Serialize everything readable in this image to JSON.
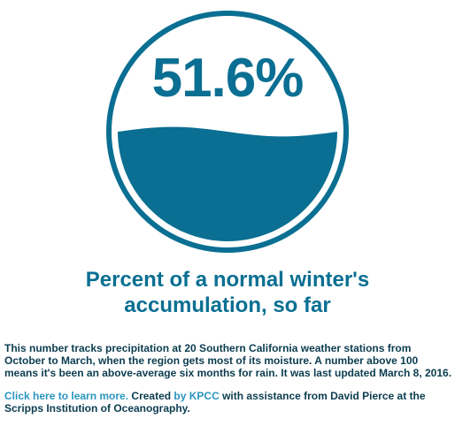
{
  "gauge": {
    "value_text": "51.6%",
    "fill_fraction": 0.516,
    "color": "#0a6f92"
  },
  "headline": {
    "line1": "Percent of a normal winter's",
    "line2": "accumulation, so far"
  },
  "description": "This number tracks precipitation at 20 Southern California weather stations from October to March, when the region gets most of its moisture. A number above 100 means it's been an above-average six months for rain. It was last updated March 8, 2016.",
  "credits": {
    "learn_more_link": "Click here to learn more.",
    "text_created": " Created ",
    "kpcc_link": "by KPCC",
    "text_assistance": " with assistance from David Pierce at the Scripps Institution of Oceanography.",
    "link_color": "#2a96c0"
  }
}
